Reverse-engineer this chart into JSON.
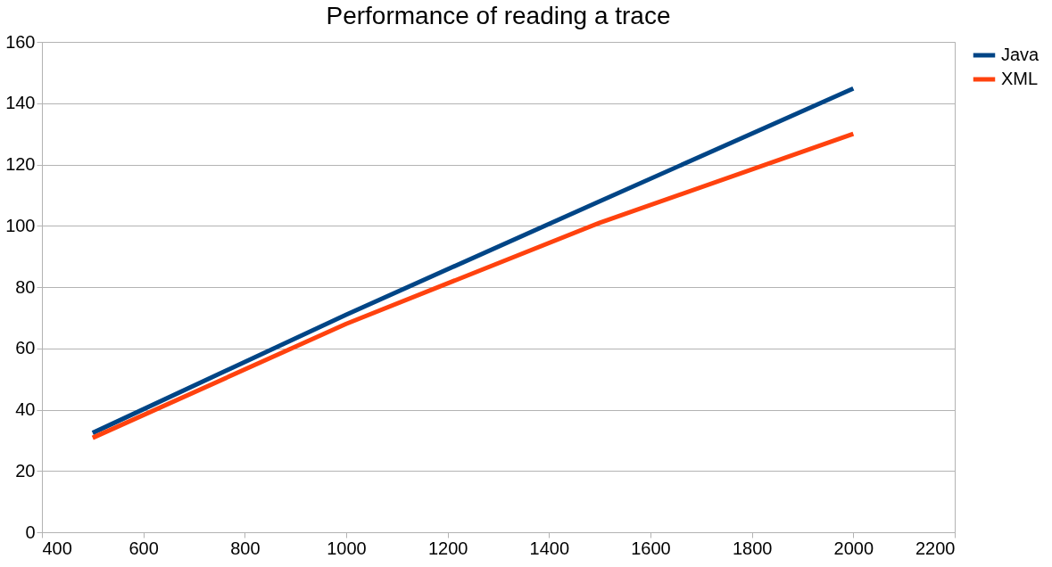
{
  "chart_data": {
    "type": "line",
    "title": "Performance of reading a trace",
    "x": [
      500,
      1000,
      1500,
      2000
    ],
    "series": [
      {
        "name": "Java",
        "color": "#004586",
        "values": [
          32.4,
          71,
          108,
          144.8
        ]
      },
      {
        "name": "XML",
        "color": "#ff420e",
        "values": [
          30.8,
          68,
          101,
          130
        ]
      }
    ],
    "xlim": [
      400,
      2200
    ],
    "xticks": [
      400,
      600,
      800,
      1000,
      1200,
      1400,
      1600,
      1800,
      2000,
      2200
    ],
    "ylim": [
      0,
      160
    ],
    "yticks": [
      0,
      20,
      40,
      60,
      80,
      100,
      120,
      140,
      160
    ],
    "grid": "y",
    "legend": "right",
    "marker": "none",
    "line_style": "solid"
  }
}
